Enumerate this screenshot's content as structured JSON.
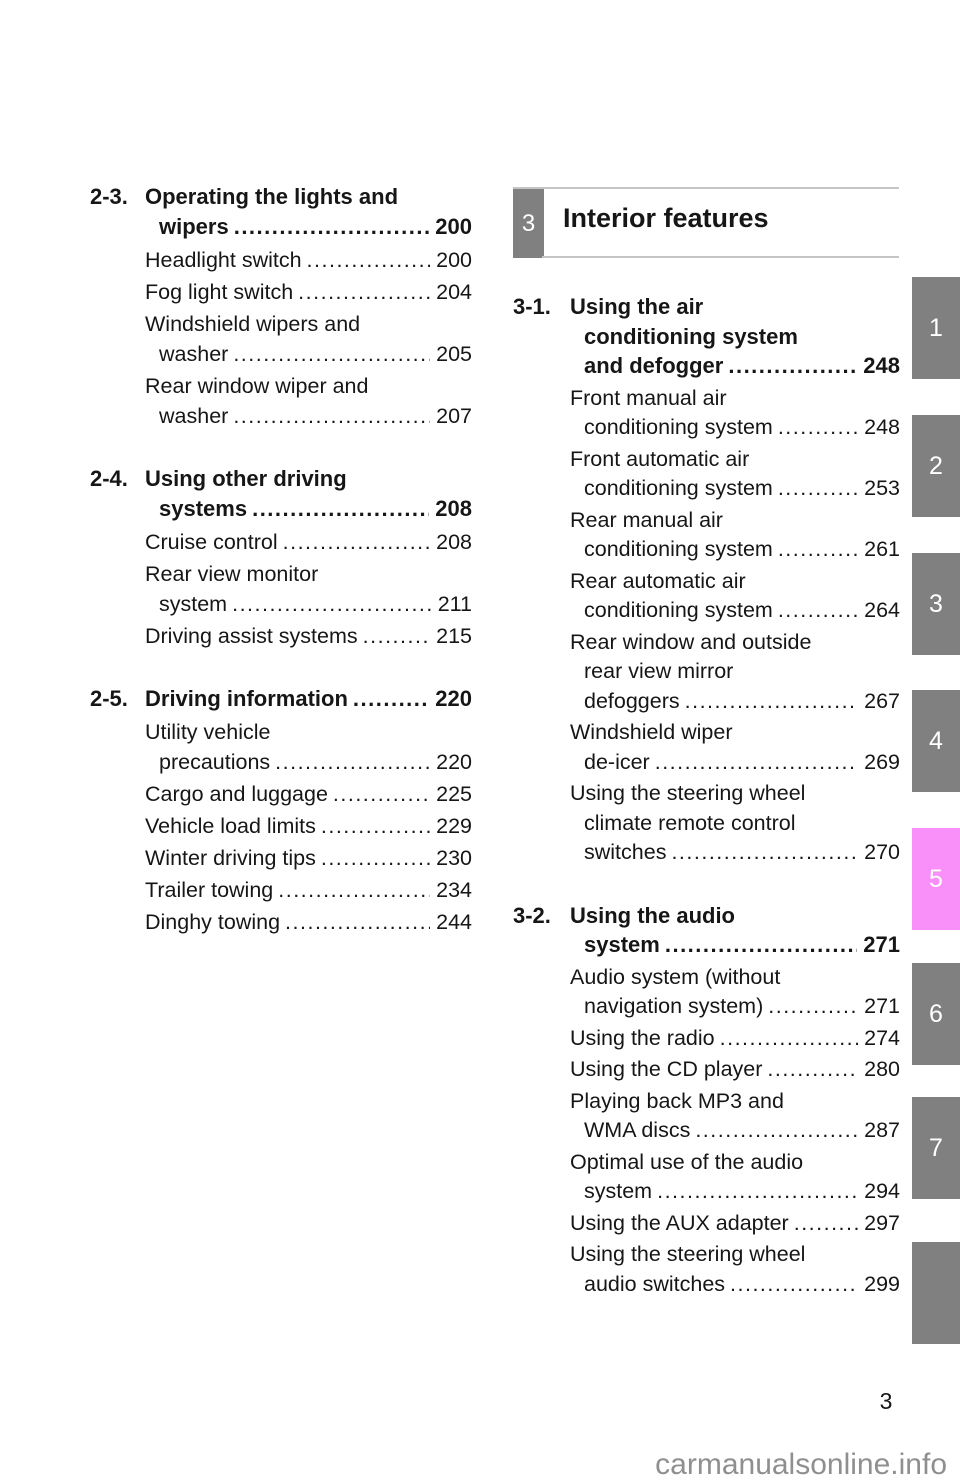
{
  "page": {
    "number": "3",
    "watermark": "carmanualsonline.info"
  },
  "colors": {
    "tab_gray": "#808080",
    "tab_pink": "#f98ff9",
    "header_rule_gray": "#c5c5c5",
    "watermark_gray": "#8f8f8f"
  },
  "left_column": {
    "sections": [
      {
        "number": "2-3.",
        "title_lines": [
          "Operating the lights and",
          "wipers"
        ],
        "title_page": "200",
        "items": [
          {
            "lines": [
              "Headlight switch"
            ],
            "page": "200"
          },
          {
            "lines": [
              "Fog light switch"
            ],
            "page": "204"
          },
          {
            "lines": [
              "Windshield wipers and",
              "washer"
            ],
            "page": "205"
          },
          {
            "lines": [
              "Rear window wiper and",
              "washer"
            ],
            "page": "207"
          }
        ]
      },
      {
        "number": "2-4.",
        "title_lines": [
          "Using other driving",
          "systems"
        ],
        "title_page": "208",
        "items": [
          {
            "lines": [
              "Cruise control"
            ],
            "page": "208"
          },
          {
            "lines": [
              "Rear view monitor",
              "system"
            ],
            "page": "211"
          },
          {
            "lines": [
              "Driving assist systems"
            ],
            "page": "215"
          }
        ]
      },
      {
        "number": "2-5.",
        "title_lines": [
          "Driving information"
        ],
        "title_page": "220",
        "items": [
          {
            "lines": [
              "Utility vehicle",
              "precautions"
            ],
            "page": "220"
          },
          {
            "lines": [
              "Cargo and luggage"
            ],
            "page": "225"
          },
          {
            "lines": [
              "Vehicle load limits"
            ],
            "page": "229"
          },
          {
            "lines": [
              "Winter driving tips"
            ],
            "page": "230"
          },
          {
            "lines": [
              "Trailer towing"
            ],
            "page": "234"
          },
          {
            "lines": [
              "Dinghy towing"
            ],
            "page": "244"
          }
        ]
      }
    ]
  },
  "right_column": {
    "chapter": {
      "number": "3",
      "title": "Interior features"
    },
    "sections": [
      {
        "number": "3-1.",
        "title_lines": [
          "Using the air",
          "conditioning system",
          "and defogger"
        ],
        "title_page": "248",
        "items": [
          {
            "lines": [
              "Front manual air",
              "conditioning system"
            ],
            "page": "248"
          },
          {
            "lines": [
              "Front automatic air",
              "conditioning system"
            ],
            "page": "253"
          },
          {
            "lines": [
              "Rear manual air",
              "conditioning system"
            ],
            "page": "261"
          },
          {
            "lines": [
              "Rear automatic air",
              "conditioning system"
            ],
            "page": "264"
          },
          {
            "lines": [
              "Rear window and outside",
              "rear view mirror",
              "defoggers"
            ],
            "page": "267"
          },
          {
            "lines": [
              "Windshield wiper",
              "de-icer"
            ],
            "page": "269"
          },
          {
            "lines": [
              "Using the steering wheel",
              "climate remote control",
              "switches"
            ],
            "page": "270"
          }
        ]
      },
      {
        "number": "3-2.",
        "title_lines": [
          "Using the audio",
          "system"
        ],
        "title_page": "271",
        "items": [
          {
            "lines": [
              "Audio system (without",
              "navigation system)"
            ],
            "page": "271"
          },
          {
            "lines": [
              "Using the radio"
            ],
            "page": "274"
          },
          {
            "lines": [
              "Using the CD player"
            ],
            "page": "280"
          },
          {
            "lines": [
              "Playing back MP3 and",
              "WMA discs"
            ],
            "page": "287"
          },
          {
            "lines": [
              "Optimal use of the audio",
              "system"
            ],
            "page": "294"
          },
          {
            "lines": [
              "Using the AUX adapter"
            ],
            "page": "297"
          },
          {
            "lines": [
              "Using the steering wheel",
              "audio switches"
            ],
            "page": "299"
          }
        ]
      }
    ]
  },
  "side_tabs": [
    {
      "label": "1",
      "color": "#808080"
    },
    {
      "label": "2",
      "color": "#808080"
    },
    {
      "label": "3",
      "color": "#808080"
    },
    {
      "label": "4",
      "color": "#808080"
    },
    {
      "label": "5",
      "color": "#f98ff9"
    },
    {
      "label": "6",
      "color": "#808080"
    },
    {
      "label": "7",
      "color": "#808080"
    },
    {
      "label": "",
      "color": "#808080"
    }
  ]
}
